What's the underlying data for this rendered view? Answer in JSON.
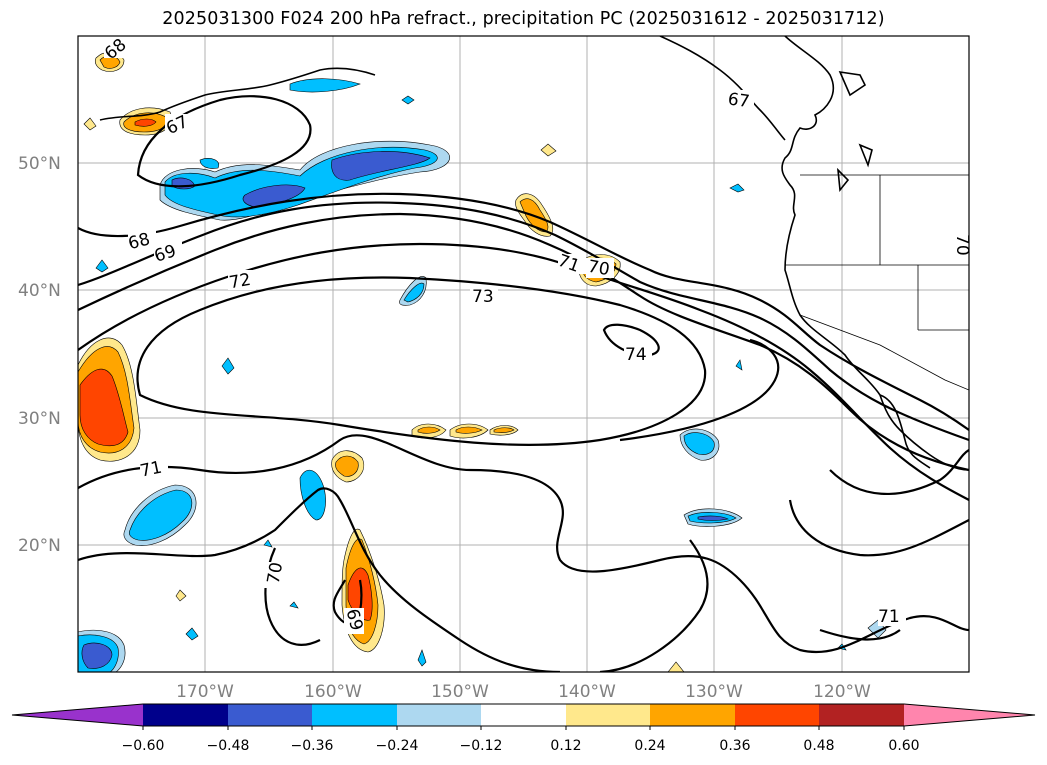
{
  "title": "2025031300 F024 200 hPa refract., precipitation PC (2025031612 - 2025031712)",
  "latitude_labels": [
    "50°N",
    "40°N",
    "30°N",
    "20°N"
  ],
  "longitude_labels": [
    "170°W",
    "160°W",
    "150°W",
    "140°W",
    "130°W",
    "120°W"
  ],
  "contour_labels": [
    "68",
    "67",
    "68",
    "69",
    "72",
    "73",
    "71",
    "70",
    "74",
    "71",
    "70",
    "69",
    "67",
    "70",
    "71"
  ],
  "colorbar": {
    "ticks": [
      "−0.60",
      "−0.48",
      "−0.36",
      "−0.24",
      "−0.12",
      "0.12",
      "0.24",
      "0.36",
      "0.48",
      "0.60"
    ],
    "colors": [
      "#9932cc",
      "#00008b",
      "#3a5bd0",
      "#00bfff",
      "#add8f0",
      "#ffffff",
      "#ffe88c",
      "#ffa500",
      "#ff4500",
      "#b22222",
      "#ff85ad"
    ]
  },
  "colors": {
    "strong_blue": "#3a5bd0",
    "blue": "#00bfff",
    "light_blue": "#add8f0",
    "yellow": "#ffe88c",
    "orange": "#ffa500",
    "red_orange": "#ff4500"
  }
}
